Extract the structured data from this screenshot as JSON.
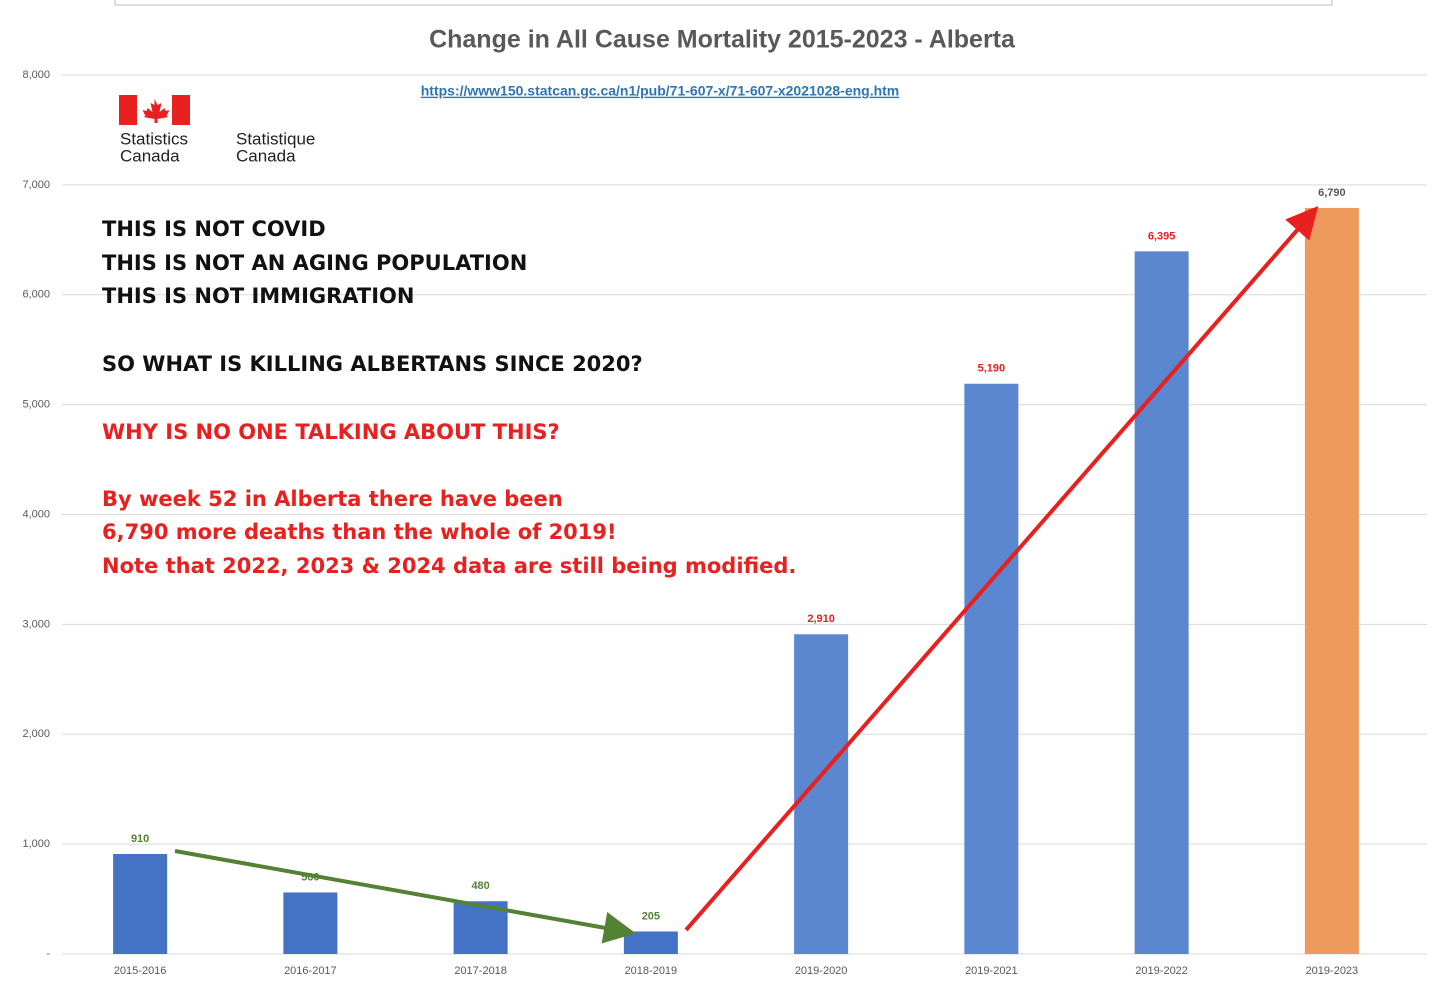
{
  "chart_data": {
    "type": "bar",
    "title": "Change in All Cause Mortality 2015-2023 - Alberta",
    "source_url": "https://www150.statcan.gc.ca/n1/pub/71-607-x/71-607-x2021028-eng.htm",
    "logo": [
      "Statistics",
      "Canada",
      "Statistique",
      "Canada"
    ],
    "annotations": [
      "THIS IS NOT COVID",
      "THIS IS NOT AN AGING POPULATION",
      "THIS IS NOT IMMIGRATION",
      "SO WHAT IS KILLING ALBERTANS SINCE 2020?"
    ],
    "red_annotations": [
      "WHY IS NO ONE TALKING ABOUT THIS?",
      "By week 52 in Alberta there have been",
      "6,790 more deaths than the whole of 2019!",
      "Note that 2022, 2023 & 2024 data are still being modified."
    ],
    "categories": [
      "2015-2016",
      "2016-2017",
      "2017-2018",
      "2018-2019",
      "2019-2020",
      "2019-2021",
      "2019-2022",
      "2019-2023"
    ],
    "values": [
      910,
      560,
      480,
      205,
      2910,
      5190,
      6395,
      6790
    ],
    "value_labels": [
      "910",
      "560",
      "480",
      "205",
      "2,910",
      "5,190",
      "6,395",
      "6,790"
    ],
    "colors": [
      "#4472c4",
      "#4472c4",
      "#4472c4",
      "#4472c4",
      "#5b86d0",
      "#5b86d0",
      "#5b86d0",
      "#ee9a5c"
    ],
    "label_colors": [
      "#548235",
      "#548235",
      "#548235",
      "#548235",
      "#e8201f",
      "#e8201f",
      "#e8201f",
      "#595959"
    ],
    "ylim": [
      0,
      8000
    ],
    "yticks": [
      {
        "value": 0,
        "label": "-"
      },
      {
        "value": 1000,
        "label": "1,000"
      },
      {
        "value": 2000,
        "label": "2,000"
      },
      {
        "value": 3000,
        "label": "3,000"
      },
      {
        "value": 4000,
        "label": "4,000"
      },
      {
        "value": 5000,
        "label": "5,000"
      },
      {
        "value": 6000,
        "label": "6,000"
      },
      {
        "value": 7000,
        "label": "7,000"
      },
      {
        "value": 8000,
        "label": "8,000"
      }
    ],
    "grid": true
  }
}
